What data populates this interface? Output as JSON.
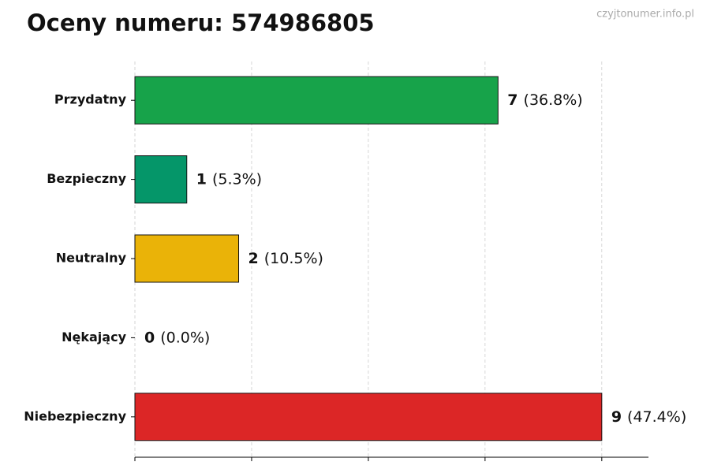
{
  "chart_data": {
    "type": "hbar",
    "title": "Oceny numeru: 574986805",
    "watermark": "czyjtonumer.info.pl",
    "categories": [
      "Przydatny",
      "Bezpieczny",
      "Neutralny",
      "Nękający",
      "Niebezpieczny"
    ],
    "values": [
      7,
      1,
      2,
      0,
      9
    ],
    "percent_labels": [
      "(36.8%)",
      "(5.3%)",
      "(10.5%)",
      "(0.0%)",
      "(47.4%)"
    ],
    "colors": [
      "#17a34a",
      "#059669",
      "#eab308",
      "#6b7280",
      "#dc2626"
    ],
    "xlim": [
      0,
      9.9
    ],
    "xticks": [
      0,
      2.25,
      4.5,
      6.75,
      9
    ],
    "grid": true
  }
}
